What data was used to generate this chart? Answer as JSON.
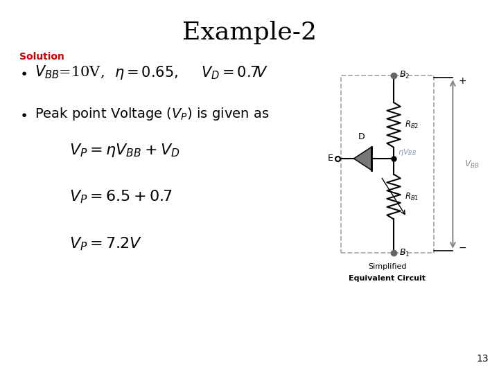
{
  "title": "Example-2",
  "solution_label": "Solution",
  "solution_color": "#cc0000",
  "background_color": "#ffffff",
  "page_number": "13",
  "title_fontsize": 26,
  "body_fontsize": 16,
  "math_fontsize": 17,
  "eta_vbb_color": "#8899aa"
}
